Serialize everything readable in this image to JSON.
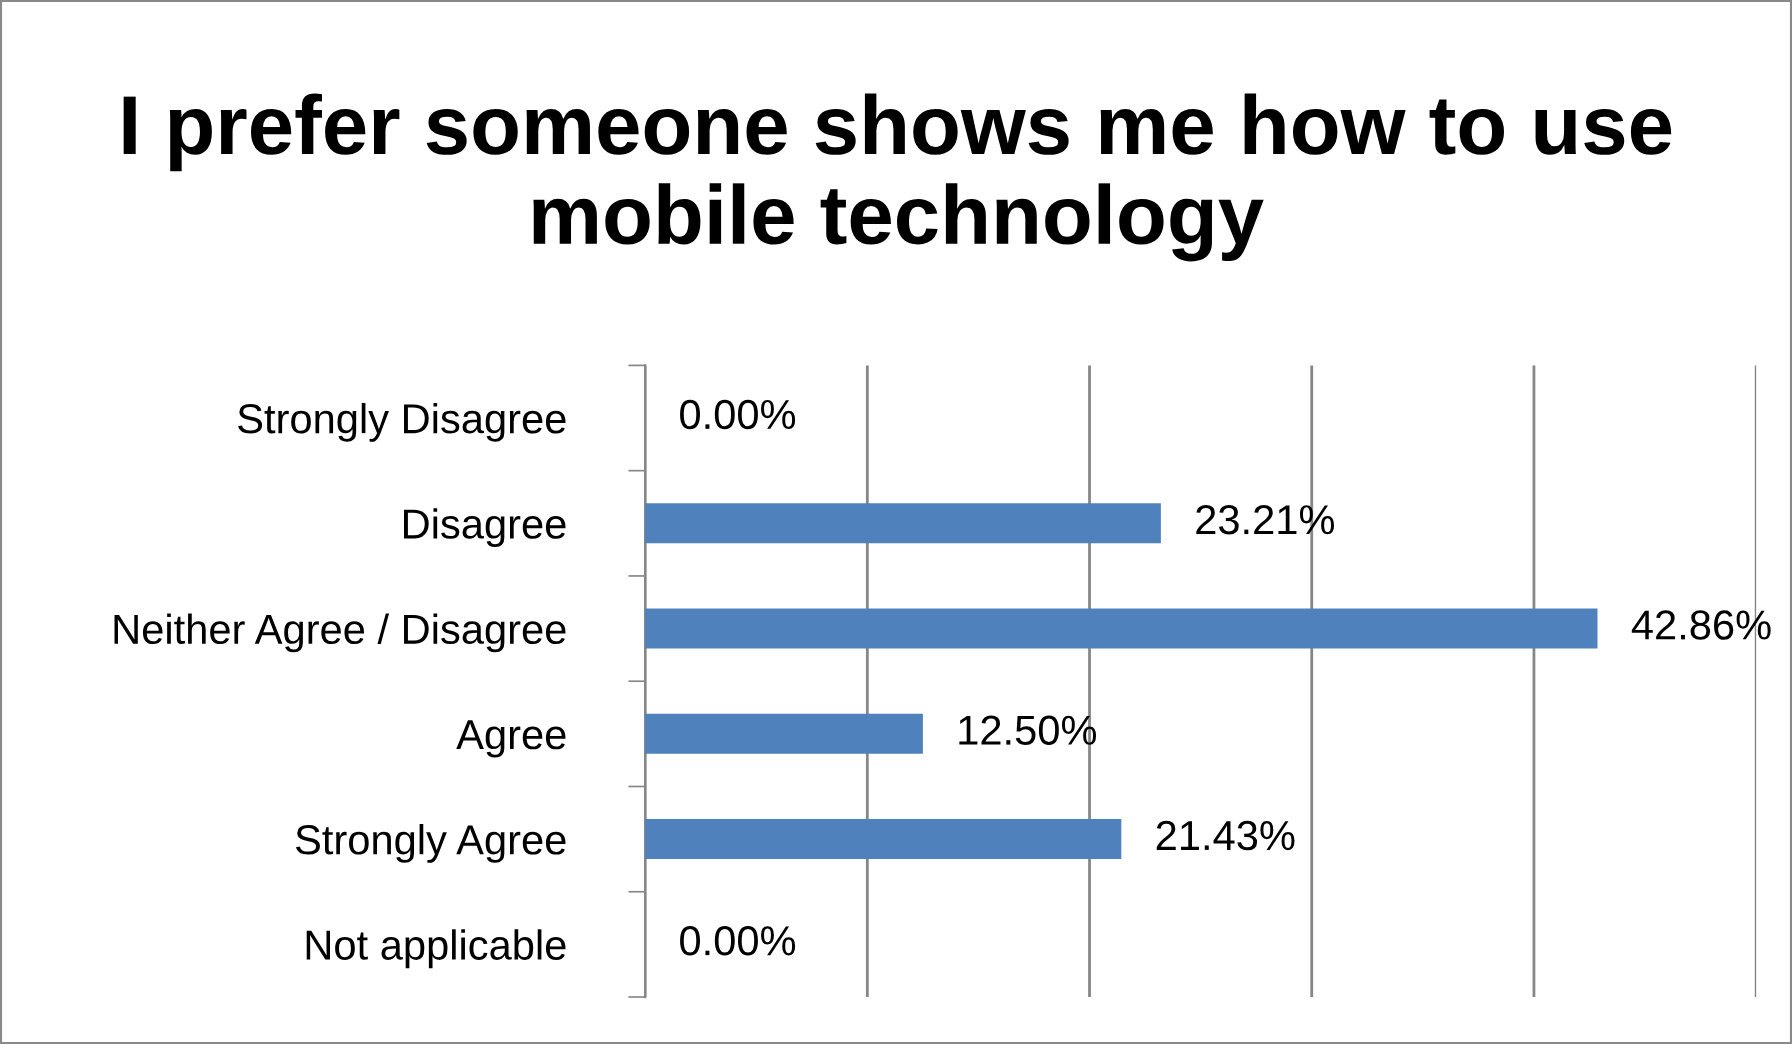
{
  "chart_data": {
    "type": "bar",
    "orientation": "horizontal",
    "title": "I prefer someone shows me how to use mobile technology",
    "categories": [
      "Strongly Disagree",
      "Disagree",
      "Neither Agree / Disagree",
      "Agree",
      "Strongly Agree",
      "Not applicable"
    ],
    "values": [
      0,
      23.21,
      42.86,
      12.5,
      21.43,
      0
    ],
    "value_labels": [
      "0.00%",
      "23.21%",
      "42.86%",
      "12.50%",
      "21.43%",
      "0.00%"
    ],
    "color": "#4f81bd",
    "xlim": [
      0,
      50
    ],
    "xticks": [
      {
        "value": 0,
        "label": null
      },
      {
        "value": 10,
        "label": null
      },
      {
        "value": 20,
        "label": null
      },
      {
        "value": 30,
        "label": null
      },
      {
        "value": 40,
        "label": null
      },
      {
        "value": 50,
        "label": null
      }
    ],
    "tick_labels": "y",
    "grid": "x",
    "legend": false
  }
}
